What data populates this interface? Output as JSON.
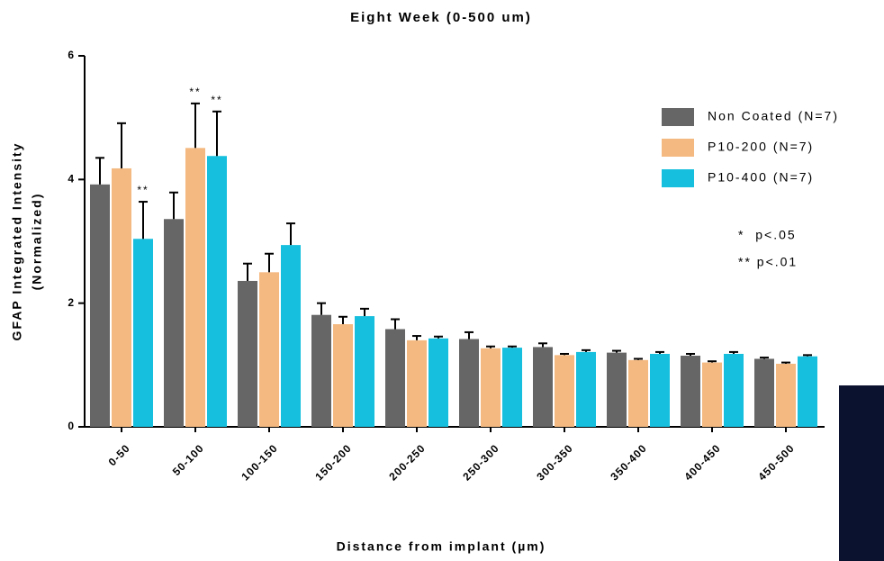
{
  "chart_data": {
    "type": "bar",
    "title": "Eight Week (0-500 um)",
    "xlabel": "Distance from implant (µm)",
    "ylabel": [
      "GFAP Integrated Intensity",
      "(Normalized)"
    ],
    "categories": [
      "0-50",
      "50-100",
      "100-150",
      "150-200",
      "200-250",
      "250-300",
      "300-350",
      "350-400",
      "400-450",
      "450-500"
    ],
    "ylim": [
      0,
      6
    ],
    "yticks": [
      0,
      2,
      4,
      6
    ],
    "legend": "upper right",
    "notes": [
      "*  p<.05",
      "** p<.01"
    ],
    "series": [
      {
        "name": "Non Coated (N=7)",
        "color": "#666666",
        "values": [
          3.92,
          3.36,
          2.36,
          1.81,
          1.58,
          1.42,
          1.29,
          1.2,
          1.15,
          1.1
        ],
        "errors": [
          0.43,
          0.43,
          0.28,
          0.19,
          0.16,
          0.11,
          0.06,
          0.03,
          0.03,
          0.02
        ],
        "annotations": [
          null,
          null,
          null,
          null,
          null,
          null,
          null,
          null,
          null,
          null
        ]
      },
      {
        "name": "P10-200 (N=7)",
        "color": "#f4b980",
        "values": [
          4.18,
          4.51,
          2.5,
          1.66,
          1.4,
          1.27,
          1.16,
          1.08,
          1.04,
          1.02
        ],
        "errors": [
          0.73,
          0.72,
          0.3,
          0.12,
          0.07,
          0.03,
          0.02,
          0.02,
          0.02,
          0.02
        ],
        "annotations": [
          null,
          "**",
          null,
          null,
          null,
          null,
          null,
          null,
          null,
          null
        ]
      },
      {
        "name": "P10-400 (N=7)",
        "color": "#16bfdd",
        "values": [
          3.04,
          4.38,
          2.94,
          1.79,
          1.43,
          1.28,
          1.21,
          1.18,
          1.18,
          1.14
        ],
        "errors": [
          0.6,
          0.72,
          0.35,
          0.12,
          0.03,
          0.02,
          0.03,
          0.03,
          0.03,
          0.02
        ],
        "annotations": [
          "**",
          "**",
          null,
          null,
          null,
          null,
          null,
          null,
          null,
          null
        ]
      }
    ]
  }
}
